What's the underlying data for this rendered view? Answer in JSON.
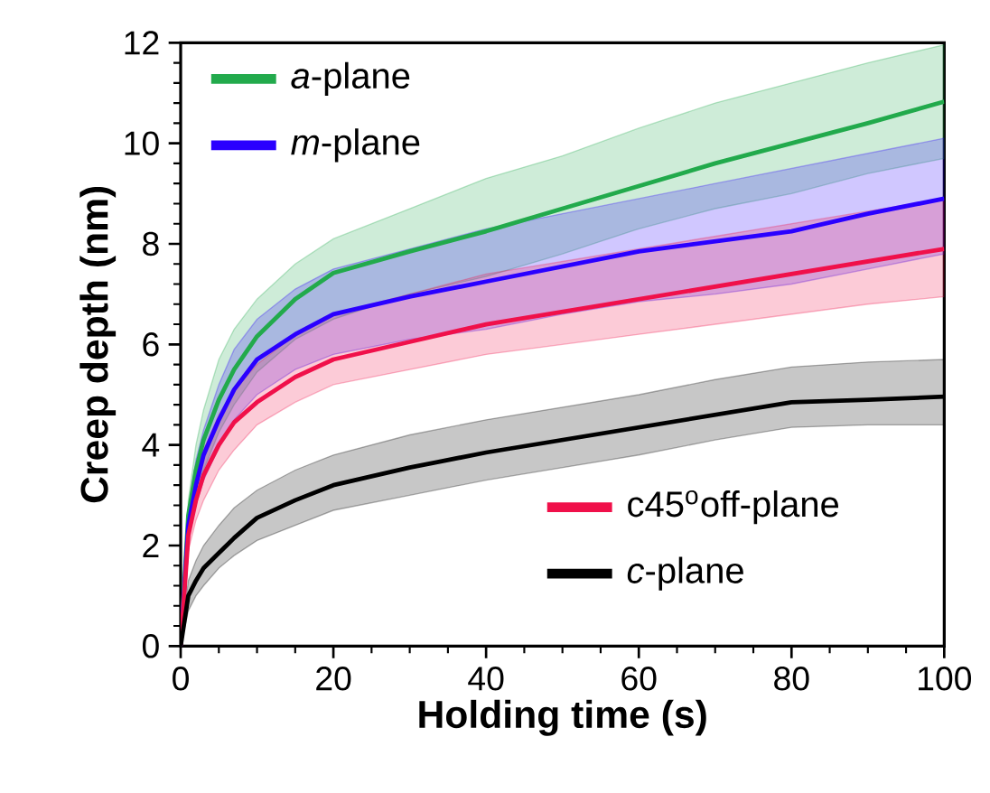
{
  "chart_data": {
    "type": "line",
    "xlabel": "Holding time (s)",
    "ylabel": "Creep depth (nm)",
    "x": [
      0,
      1,
      2,
      3,
      5,
      7,
      10,
      15,
      20,
      30,
      40,
      50,
      60,
      70,
      80,
      90,
      100
    ],
    "xlim": [
      0,
      100
    ],
    "ylim": [
      0,
      12
    ],
    "xticks": [
      0,
      20,
      40,
      60,
      80,
      100
    ],
    "yticks": [
      0,
      2,
      4,
      6,
      8,
      10,
      12
    ],
    "legend": "top left",
    "grid": false,
    "marker": "none",
    "line_style": "solid",
    "series": [
      {
        "name": "*a*-plane",
        "color": "#22aa4c",
        "values": [
          0,
          2.6,
          3.5,
          4.1,
          4.9,
          5.5,
          6.16,
          6.9,
          7.42,
          7.85,
          8.25,
          8.7,
          9.15,
          9.6,
          10.0,
          10.4,
          10.83
        ],
        "upper": [
          0,
          2.9,
          4.0,
          4.7,
          5.7,
          6.3,
          6.9,
          7.6,
          8.1,
          8.7,
          9.3,
          9.75,
          10.3,
          10.8,
          11.2,
          11.6,
          11.96
        ],
        "lower": [
          0,
          2.2,
          3.0,
          3.5,
          4.25,
          4.8,
          5.45,
          6.1,
          6.5,
          7.0,
          7.35,
          7.8,
          8.3,
          8.7,
          9.0,
          9.4,
          9.7
        ]
      },
      {
        "name": "*m*-plane",
        "color": "#2a00ff",
        "values": [
          0,
          2.4,
          3.2,
          3.8,
          4.5,
          5.1,
          5.7,
          6.2,
          6.6,
          6.95,
          7.25,
          7.55,
          7.85,
          8.05,
          8.25,
          8.6,
          8.9
        ],
        "upper": [
          0,
          2.7,
          3.7,
          4.3,
          5.2,
          5.9,
          6.5,
          7.1,
          7.5,
          7.9,
          8.3,
          8.6,
          8.9,
          9.2,
          9.5,
          9.8,
          10.1
        ],
        "lower": [
          0,
          2.1,
          2.8,
          3.3,
          3.95,
          4.5,
          5.0,
          5.5,
          5.8,
          6.1,
          6.3,
          6.6,
          6.85,
          7.0,
          7.2,
          7.5,
          7.8
        ]
      },
      {
        "name": "c45$^{o}$off-plane",
        "color": "#f0104a",
        "values": [
          0,
          2.2,
          2.9,
          3.4,
          4.0,
          4.45,
          4.85,
          5.35,
          5.7,
          6.05,
          6.4,
          6.65,
          6.9,
          7.15,
          7.4,
          7.65,
          7.9
        ],
        "upper": [
          0,
          2.5,
          3.3,
          3.9,
          4.6,
          5.1,
          5.6,
          6.2,
          6.6,
          7.0,
          7.4,
          7.65,
          7.9,
          8.15,
          8.4,
          8.65,
          8.9
        ],
        "lower": [
          0,
          1.9,
          2.5,
          2.9,
          3.5,
          3.9,
          4.4,
          4.85,
          5.2,
          5.5,
          5.8,
          6.0,
          6.2,
          6.4,
          6.6,
          6.8,
          6.95
        ]
      },
      {
        "name": "*c*-plane",
        "color": "#000000",
        "values": [
          0,
          1.0,
          1.3,
          1.55,
          1.85,
          2.15,
          2.55,
          2.9,
          3.2,
          3.55,
          3.85,
          4.1,
          4.35,
          4.6,
          4.85,
          4.9,
          4.96
        ],
        "upper": [
          0,
          1.3,
          1.7,
          2.0,
          2.4,
          2.75,
          3.1,
          3.5,
          3.8,
          4.2,
          4.5,
          4.75,
          5.0,
          5.3,
          5.55,
          5.65,
          5.7
        ],
        "lower": [
          0,
          0.7,
          1.0,
          1.2,
          1.55,
          1.8,
          2.1,
          2.4,
          2.7,
          3.0,
          3.3,
          3.55,
          3.8,
          4.1,
          4.35,
          4.4,
          4.4
        ]
      }
    ]
  }
}
